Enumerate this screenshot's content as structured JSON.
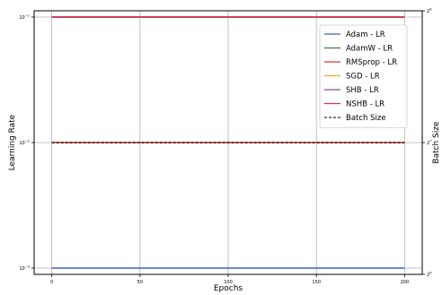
{
  "chart_data": {
    "type": "line",
    "xlabel": "Epochs",
    "ylabel": "Learning Rate",
    "y2label": "Batch Size",
    "xlim": [
      -10,
      210
    ],
    "xticks": [
      0,
      50,
      100,
      150,
      200
    ],
    "x_tick_labels": [
      "0",
      "50",
      "100",
      "150",
      "200"
    ],
    "ylim_log10": [
      -3.05,
      -0.95
    ],
    "y_scale": "log",
    "yticks": [
      -3,
      -2,
      -1
    ],
    "y_tick_labels": [
      {
        "base": "10",
        "exp": "−3"
      },
      {
        "base": "10",
        "exp": "−2"
      },
      {
        "base": "10",
        "exp": "−1"
      }
    ],
    "y2_scale": "log2",
    "y2lim_exp": [
      6,
      8
    ],
    "y2ticks": [
      6,
      7,
      8
    ],
    "y2_tick_labels": [
      {
        "base": "2",
        "exp": "6"
      },
      {
        "base": "2",
        "exp": "7"
      },
      {
        "base": "2",
        "exp": "8"
      }
    ],
    "grid": true,
    "legend_position": "top-right",
    "series": [
      {
        "name": "Adam - LR",
        "color": "#3b5fd1",
        "axis": "left",
        "x": [
          0,
          200
        ],
        "y": [
          0.001,
          0.001
        ]
      },
      {
        "name": "AdamW - LR",
        "color": "#2e8b2e",
        "axis": "left",
        "x": [
          0,
          200
        ],
        "y": [
          0.1,
          0.1
        ]
      },
      {
        "name": "RMSprop - LR",
        "color": "#e8352f",
        "axis": "left",
        "x": [
          0,
          200
        ],
        "y": [
          0.01,
          0.01
        ]
      },
      {
        "name": "SGD - LR",
        "color": "#f5a623",
        "axis": "left",
        "x": [
          0,
          200
        ],
        "y": [
          0.1,
          0.1
        ]
      },
      {
        "name": "SHB - LR",
        "color": "#9b3fb5",
        "axis": "left",
        "x": [
          0,
          200
        ],
        "y": [
          0.1,
          0.1
        ]
      },
      {
        "name": "NSHB - LR",
        "color": "#d6334f",
        "axis": "left",
        "x": [
          0,
          200
        ],
        "y": [
          0.1,
          0.1
        ]
      },
      {
        "name": "Batch Size",
        "color": "#000000",
        "dashed": true,
        "axis": "right",
        "x": [
          0,
          200
        ],
        "y": [
          128,
          128
        ]
      }
    ]
  }
}
